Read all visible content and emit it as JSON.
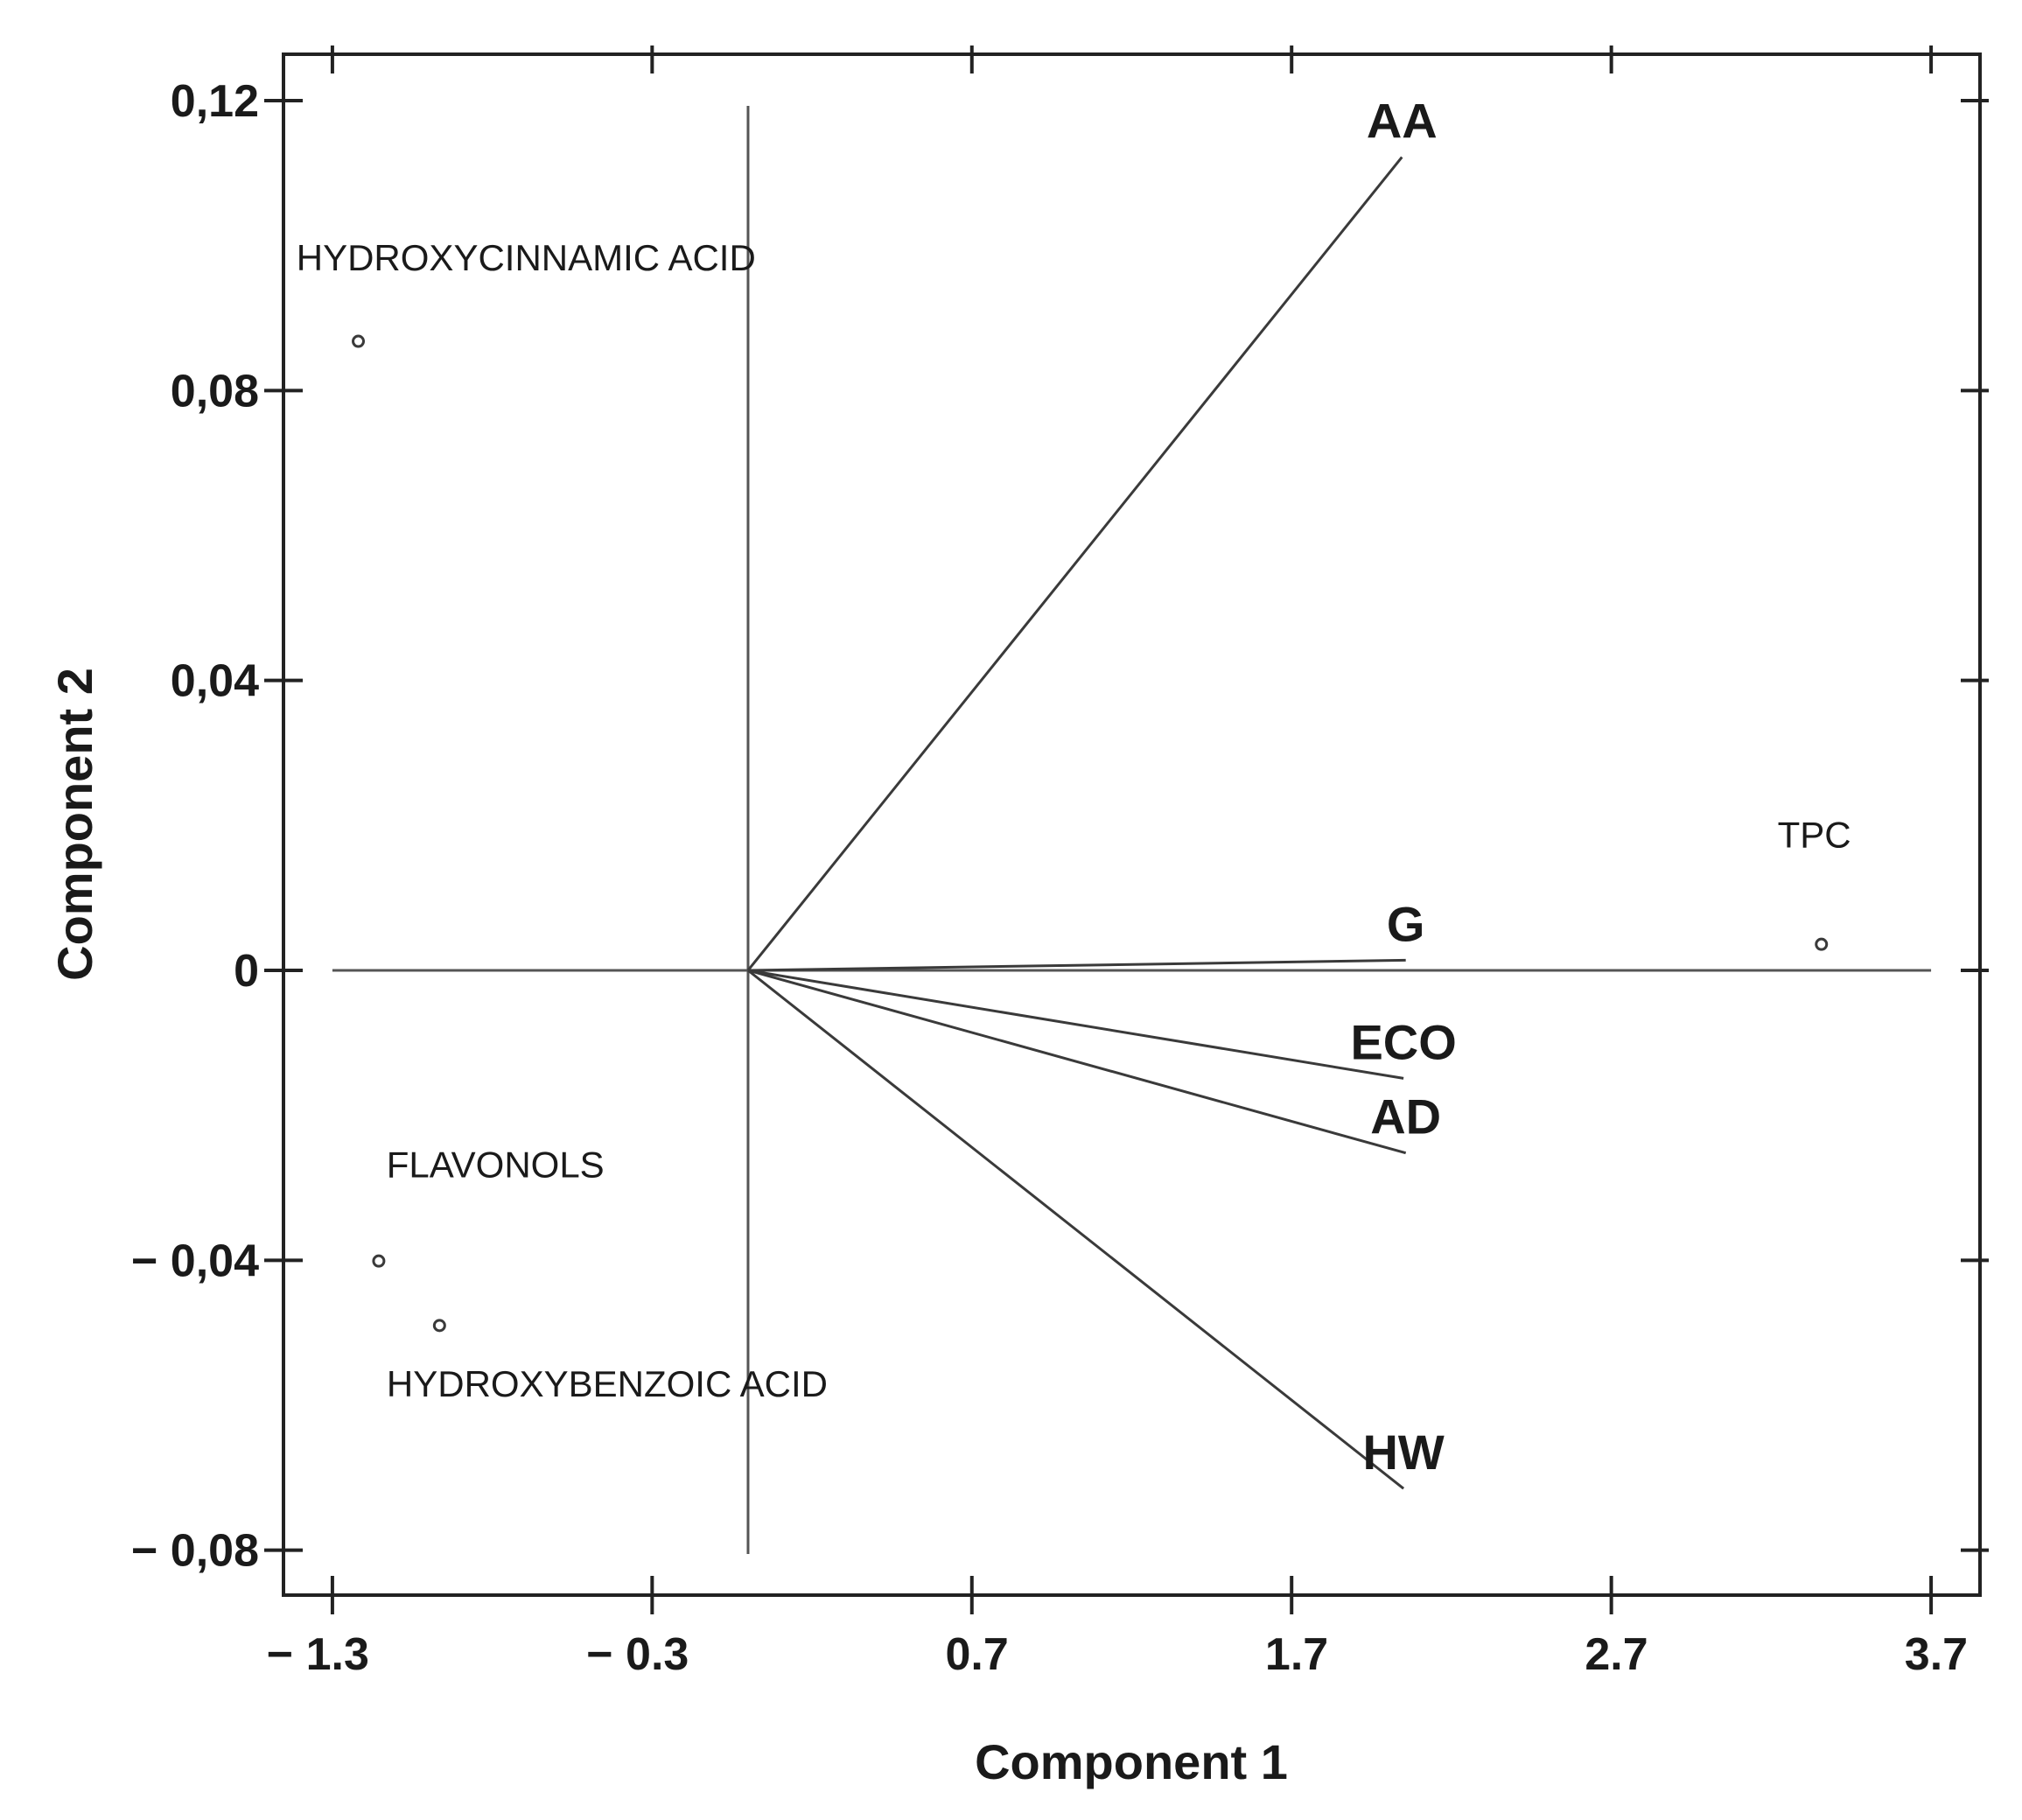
{
  "chart_data": {
    "type": "biplot",
    "xlabel": "Component 1",
    "ylabel": "Component 2",
    "xlim": [
      -1.453,
      3.853
    ],
    "ylim": [
      -0.0862,
      0.1264
    ],
    "xticks": [
      {
        "value": -1.3,
        "label": "− 1.3"
      },
      {
        "value": -0.3,
        "label": "− 0.3"
      },
      0.7,
      1.7,
      2.7,
      3.7
    ],
    "yticks": [
      {
        "value": 0.12,
        "label": "0,12"
      },
      {
        "value": 0.08,
        "label": "0,08"
      },
      {
        "value": 0.04,
        "label": "0,04"
      },
      0,
      {
        "value": -0.04,
        "label": "− 0,04"
      },
      {
        "value": -0.08,
        "label": "− 0,08"
      }
    ],
    "vectors": [
      {
        "label": "AA",
        "x": 2.045,
        "y": 0.1122
      },
      {
        "label": "G",
        "x": 2.057,
        "y": 0.0014
      },
      {
        "label": "ECO",
        "x": 2.05,
        "y": -0.0149
      },
      {
        "label": "AD",
        "x": 2.057,
        "y": -0.0252
      },
      {
        "label": "HW",
        "x": 2.05,
        "y": -0.0715
      }
    ],
    "points": [
      {
        "label": "HYDROXYCINNAMIC ACID",
        "x": -1.219,
        "y": 0.0868
      },
      {
        "label": "TPC",
        "x": 3.357,
        "y": 0.0036
      },
      {
        "label": "FLAVONOLS",
        "x": -1.155,
        "y": -0.0401
      },
      {
        "label": "HYDROXYBENZOIC ACID",
        "x": -0.965,
        "y": -0.049
      }
    ],
    "color": "#3a3a3a"
  }
}
